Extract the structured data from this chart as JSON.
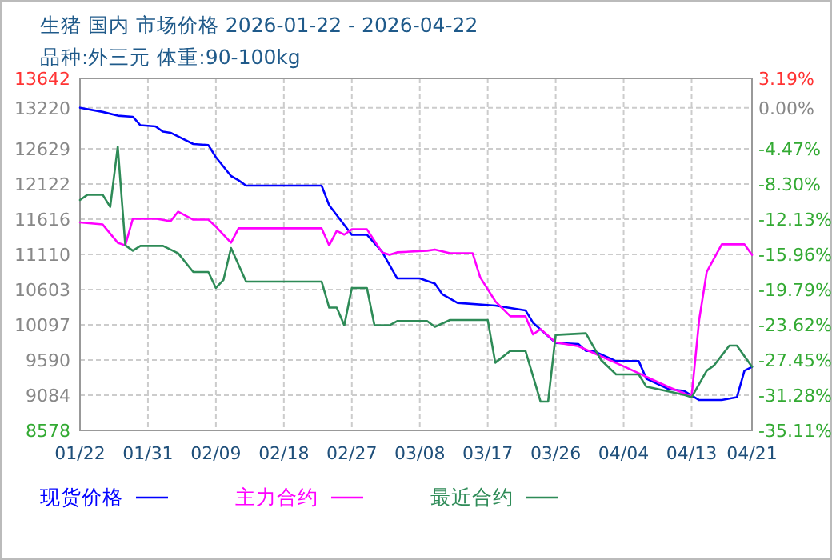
{
  "chart_data": {
    "type": "line",
    "title": "生猪 国内 市场价格 2026-01-22 - 2026-04-22",
    "subtitle": "品种:外三元 体重:90-100kg",
    "xlim": [
      "2026-01-22",
      "2026-04-21"
    ],
    "xticks": [
      {
        "value": "2026-01-22",
        "label": "01/22"
      },
      {
        "value": "2026-01-31",
        "label": "01/31"
      },
      {
        "value": "2026-02-09",
        "label": "02/09"
      },
      {
        "value": "2026-02-18",
        "label": "02/18"
      },
      {
        "value": "2026-02-27",
        "label": "02/27"
      },
      {
        "value": "2026-03-08",
        "label": "03/08"
      },
      {
        "value": "2026-03-17",
        "label": "03/17"
      },
      {
        "value": "2026-03-26",
        "label": "03/26"
      },
      {
        "value": "2026-04-04",
        "label": "04/04"
      },
      {
        "value": "2026-04-13",
        "label": "04/13"
      },
      {
        "value": "2026-04-21",
        "label": "04/21"
      }
    ],
    "ylim": [
      8578,
      13642
    ],
    "yticks": [
      13642,
      13220,
      12629,
      12122,
      11616,
      11110,
      10603,
      10097,
      9590,
      9084,
      8578
    ],
    "y2lim": [
      -35.11,
      3.19
    ],
    "y2ticks": [
      {
        "value": 3.19,
        "label": "3.19%"
      },
      {
        "value": 0,
        "label": "0.00%"
      },
      {
        "value": -4.47,
        "label": "-4.47%"
      },
      {
        "value": -8.3,
        "label": "-8.30%"
      },
      {
        "value": -12.13,
        "label": "-12.13%"
      },
      {
        "value": -15.96,
        "label": "-15.96%"
      },
      {
        "value": -19.79,
        "label": "-19.79%"
      },
      {
        "value": -23.62,
        "label": "-23.62%"
      },
      {
        "value": -27.45,
        "label": "-27.45%"
      },
      {
        "value": -31.28,
        "label": "-31.28%"
      },
      {
        "value": -35.11,
        "label": "-35.11%"
      }
    ],
    "grid": true,
    "legend": "bottom",
    "line_style": "solid",
    "series": [
      {
        "name": "现货价格",
        "color": "#0000ff",
        "x": [
          "2026-01-22",
          "2026-01-25",
          "2026-01-27",
          "2026-01-29",
          "2026-01-30",
          "2026-02-01",
          "2026-02-02",
          "2026-02-03",
          "2026-02-06",
          "2026-02-08",
          "2026-02-09",
          "2026-02-11",
          "2026-02-12",
          "2026-02-13",
          "2026-02-23",
          "2026-02-24",
          "2026-02-27",
          "2026-03-01",
          "2026-03-03",
          "2026-03-05",
          "2026-03-08",
          "2026-03-10",
          "2026-03-11",
          "2026-03-13",
          "2026-03-18",
          "2026-03-22",
          "2026-03-23",
          "2026-03-26",
          "2026-03-29",
          "2026-03-30",
          "2026-03-31",
          "2026-04-03",
          "2026-04-06",
          "2026-04-07",
          "2026-04-10",
          "2026-04-12",
          "2026-04-14",
          "2026-04-17",
          "2026-04-19",
          "2026-04-20",
          "2026-04-21"
        ],
        "values": [
          13220,
          13160,
          13106,
          13090,
          12968,
          12952,
          12876,
          12860,
          12698,
          12683,
          12508,
          12238,
          12176,
          12100,
          12100,
          11817,
          11393,
          11393,
          11150,
          10765,
          10765,
          10689,
          10535,
          10412,
          10374,
          10305,
          10127,
          9837,
          9821,
          9722,
          9722,
          9575,
          9575,
          9322,
          9170,
          9147,
          9015,
          9015,
          9055,
          9437,
          9492
        ]
      },
      {
        "name": "主力合约",
        "color": "#ff00ff",
        "x": [
          "2026-01-22",
          "2026-01-25",
          "2026-01-27",
          "2026-01-28",
          "2026-01-29",
          "2026-02-01",
          "2026-02-03",
          "2026-02-04",
          "2026-02-06",
          "2026-02-08",
          "2026-02-09",
          "2026-02-11",
          "2026-02-12",
          "2026-02-23",
          "2026-02-24",
          "2026-02-25",
          "2026-02-26",
          "2026-02-27",
          "2026-03-01",
          "2026-03-03",
          "2026-03-04",
          "2026-03-05",
          "2026-03-09",
          "2026-03-10",
          "2026-03-12",
          "2026-03-15",
          "2026-03-16",
          "2026-03-18",
          "2026-03-20",
          "2026-03-22",
          "2026-03-23",
          "2026-03-24",
          "2026-03-26",
          "2026-03-29",
          "2026-04-04",
          "2026-04-10",
          "2026-04-13",
          "2026-04-14",
          "2026-04-15",
          "2026-04-17",
          "2026-04-20",
          "2026-04-21"
        ],
        "values": [
          11571,
          11541,
          11278,
          11241,
          11624,
          11624,
          11587,
          11725,
          11610,
          11610,
          11508,
          11278,
          11485,
          11485,
          11241,
          11448,
          11395,
          11471,
          11471,
          11140,
          11103,
          11140,
          11163,
          11180,
          11126,
          11126,
          10781,
          10436,
          10219,
          10219,
          9959,
          10035,
          9844,
          9790,
          9500,
          9200,
          9068,
          10166,
          10857,
          11255,
          11255,
          11103
        ]
      },
      {
        "name": "最近合约",
        "color": "#2e8b57",
        "x": [
          "2026-01-22",
          "2026-01-23",
          "2026-01-25",
          "2026-01-26",
          "2026-01-27",
          "2026-01-28",
          "2026-01-29",
          "2026-01-30",
          "2026-02-02",
          "2026-02-04",
          "2026-02-06",
          "2026-02-08",
          "2026-02-09",
          "2026-02-10",
          "2026-02-11",
          "2026-02-13",
          "2026-02-23",
          "2026-02-24",
          "2026-02-25",
          "2026-02-26",
          "2026-02-27",
          "2026-03-01",
          "2026-03-02",
          "2026-03-04",
          "2026-03-05",
          "2026-03-09",
          "2026-03-10",
          "2026-03-12",
          "2026-03-17",
          "2026-03-18",
          "2026-03-20",
          "2026-03-22",
          "2026-03-24",
          "2026-03-25",
          "2026-03-26",
          "2026-03-30",
          "2026-04-01",
          "2026-04-03",
          "2026-04-06",
          "2026-04-07",
          "2026-04-12",
          "2026-04-13",
          "2026-04-15",
          "2026-04-16",
          "2026-04-18",
          "2026-04-19",
          "2026-04-21"
        ],
        "values": [
          11893,
          11969,
          11969,
          11794,
          12660,
          11241,
          11163,
          11232,
          11232,
          11126,
          10857,
          10857,
          10627,
          10742,
          11202,
          10719,
          10719,
          10344,
          10344,
          10090,
          10627,
          10627,
          10090,
          10090,
          10150,
          10150,
          10068,
          10166,
          10166,
          9552,
          9722,
          9722,
          8992,
          8992,
          9952,
          9975,
          9591,
          9384,
          9384,
          9207,
          9091,
          9055,
          9437,
          9515,
          9798,
          9798,
          9492
        ]
      }
    ]
  }
}
